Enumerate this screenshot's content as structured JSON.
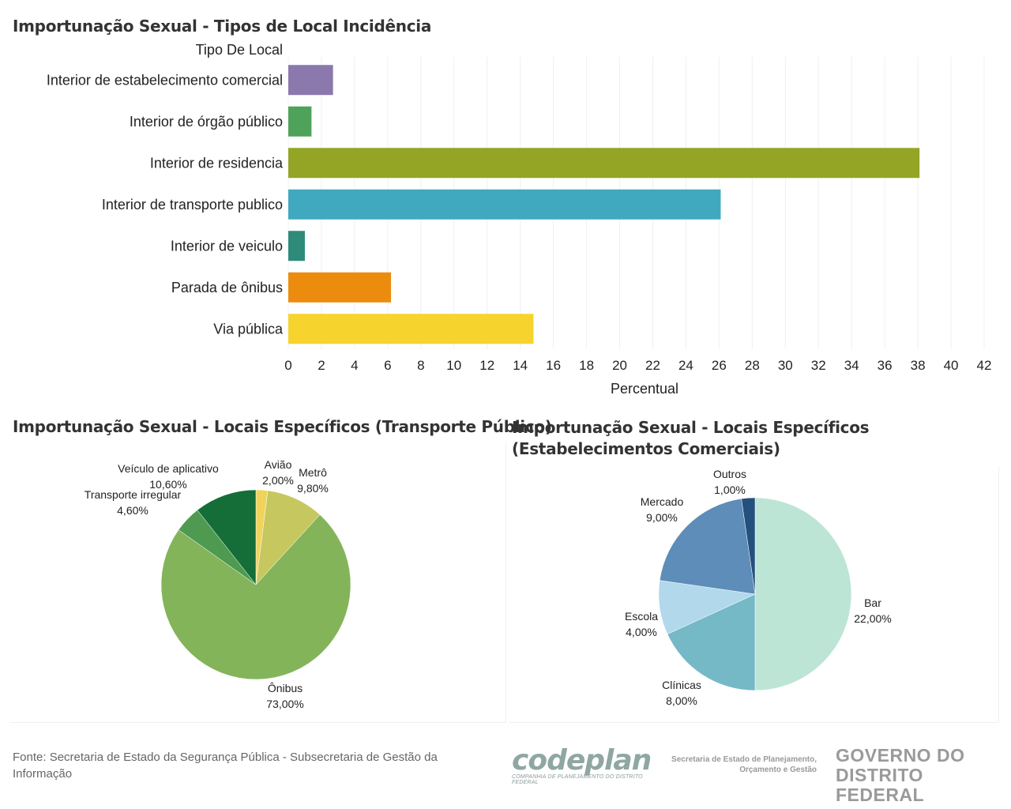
{
  "footer": {
    "source": "Fonte: Secretaria de Estado da Segurança Pública - Subsecretaria de Gestão da Informação"
  },
  "logos": {
    "codeplan_word": "codeplan",
    "codeplan_sub": "COMPANHIA DE PLANEJAMENTO DO DISTRITO FEDERAL",
    "seplan_line1": "Secretaria de Estado de Planejamento,",
    "seplan_line2": "Orçamento e Gestão",
    "gdf_line1": "GOVERNO DO",
    "gdf_line2": "DISTRITO FEDERAL"
  },
  "chart_data": [
    {
      "type": "bar",
      "orientation": "horizontal",
      "title": "Importunação Sexual - Tipos de Local Incidência",
      "category_header": "Tipo De Local",
      "xlabel": "Percentual",
      "xlim": [
        0,
        42
      ],
      "xticks": [
        0,
        2,
        4,
        6,
        8,
        10,
        12,
        14,
        16,
        18,
        20,
        22,
        24,
        26,
        28,
        30,
        32,
        34,
        36,
        38,
        40,
        42
      ],
      "grid": true,
      "categories": [
        "Interior de estabelecimento comercial",
        "Interior de órgão público",
        "Interior de residencia",
        "Interior de transporte publico",
        "Interior de veiculo",
        "Parada de ônibus",
        "Via pública"
      ],
      "values": [
        2.7,
        1.4,
        38.1,
        26.1,
        1.0,
        6.2,
        14.8
      ],
      "colors": [
        "#8b78ad",
        "#4ea25a",
        "#94a526",
        "#41a9bf",
        "#2e8b7a",
        "#ec8c0f",
        "#f6d32d"
      ]
    },
    {
      "type": "pie",
      "title": "Importunação Sexual - Locais Específicos (Transporte Público)",
      "slices": [
        {
          "label": "Avião",
          "value_label": "2,00%",
          "value": 2.0,
          "color": "#f0d45a"
        },
        {
          "label": "Metrô",
          "value_label": "9,80%",
          "value": 9.8,
          "color": "#c6c85f"
        },
        {
          "label": "Ônibus",
          "value_label": "73,00%",
          "value": 73.0,
          "color": "#84b45a"
        },
        {
          "label": "Transporte irregular",
          "value_label": "4,60%",
          "value": 4.6,
          "color": "#4e9a51"
        },
        {
          "label": "Veículo de aplicativo",
          "value_label": "10,60%",
          "value": 10.6,
          "color": "#156e38"
        }
      ]
    },
    {
      "type": "pie",
      "title": "Importunação Sexual - Locais Específicos (Estabelecimentos Comerciais)",
      "slices": [
        {
          "label": "Bar",
          "value_label": "22,00%",
          "value": 22.0,
          "color": "#bde5d6"
        },
        {
          "label": "Clínicas",
          "value_label": "8,00%",
          "value": 8.0,
          "color": "#75b9c7"
        },
        {
          "label": "Escola",
          "value_label": "4,00%",
          "value": 4.0,
          "color": "#b2d8ec"
        },
        {
          "label": "Mercado",
          "value_label": "9,00%",
          "value": 9.0,
          "color": "#5d8db8"
        },
        {
          "label": "Outros",
          "value_label": "1,00%",
          "value": 1.0,
          "color": "#24507e"
        }
      ]
    }
  ]
}
